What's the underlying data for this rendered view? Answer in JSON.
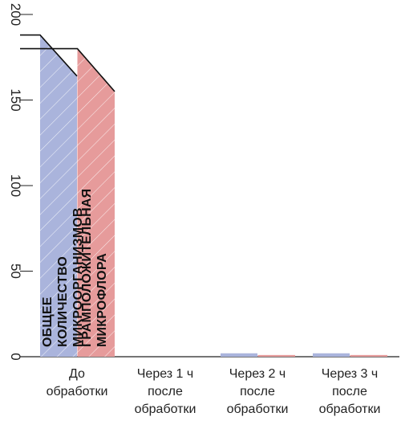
{
  "chart_data": {
    "type": "bar",
    "categories": [
      "До\nобработки",
      "Через 1 ч\nпосле\nобработки",
      "Через 2 ч\nпосле\nобработки",
      "Через 3 ч\nпосле\nобработки"
    ],
    "y_ticks": [
      "200",
      "150",
      "100",
      "50",
      "0"
    ],
    "ylim": [
      0,
      210
    ],
    "grid": false,
    "series": [
      {
        "name": "ОБЩЕЕ КОЛИЧЕСТВО МИКРООРГАНИЗМОВ",
        "color": "#aab4dc",
        "values": [
          188,
          0,
          2,
          2
        ],
        "top_values_right_edge": [
          164,
          0,
          2,
          2
        ]
      },
      {
        "name": "ГРАМПОЛОЖИТЕЛЬНАЯ МИКРОФЛОРА",
        "color": "#e69b9b",
        "values": [
          180,
          0,
          1,
          1
        ],
        "top_values_right_edge": [
          155,
          0,
          1,
          1
        ]
      }
    ]
  }
}
